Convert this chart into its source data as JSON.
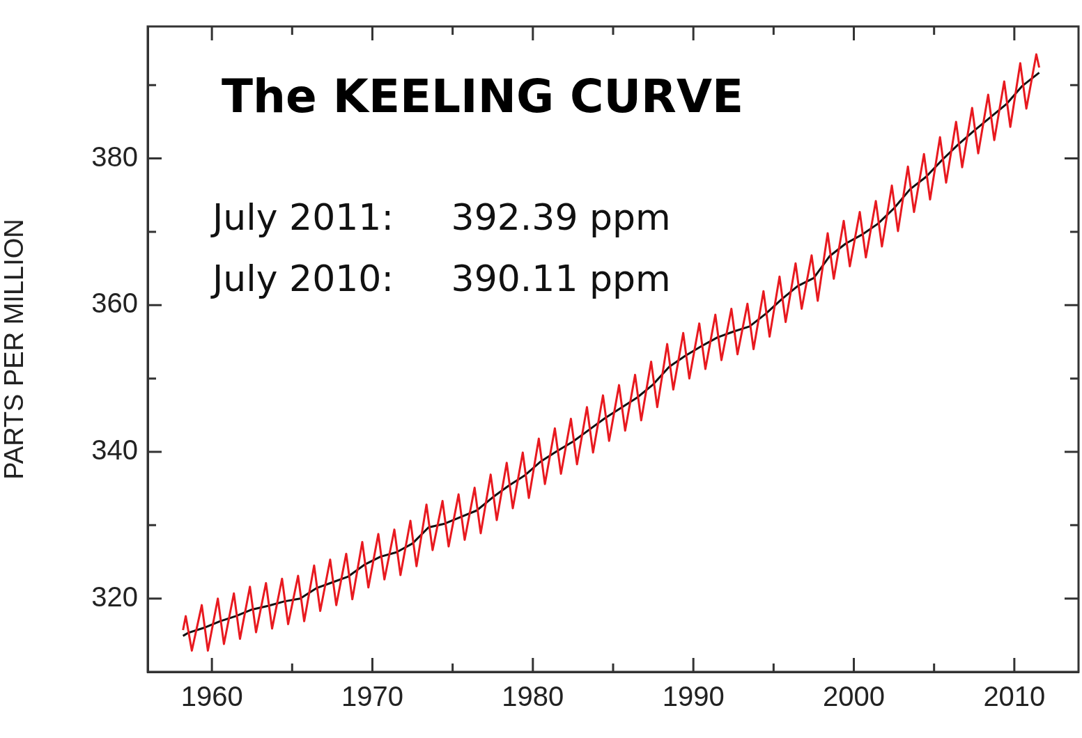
{
  "chart_data": {
    "type": "line",
    "title": "The KEELING CURVE",
    "ylabel": "PARTS PER MILLION",
    "annotations": [
      "July 2011:     392.39 ppm",
      "July 2010:     390.11 ppm"
    ],
    "xlim": [
      1956,
      2014
    ],
    "xticks": [
      1960,
      {
        "value": 1965,
        "label": null
      },
      1970,
      {
        "value": 1975,
        "label": null
      },
      1980,
      {
        "value": 1985,
        "label": null
      },
      1990,
      {
        "value": 1995,
        "label": null
      },
      2000,
      {
        "value": 2005,
        "label": null
      },
      2010
    ],
    "ylim": [
      310,
      398
    ],
    "yticks": [
      320,
      {
        "value": 330,
        "label": null
      },
      340,
      {
        "value": 350,
        "label": null
      },
      360,
      {
        "value": 370,
        "label": null
      },
      380,
      {
        "value": 390,
        "label": null
      }
    ],
    "legend": false,
    "series": [
      {
        "color": "#e8191f",
        "x": [
          1958.2,
          1958.37,
          1958.75,
          1959.37,
          1959.75,
          1960.37,
          1960.75,
          1961.37,
          1961.75,
          1962.37,
          1962.75,
          1963.37,
          1963.75,
          1964.37,
          1964.75,
          1965.37,
          1965.75,
          1966.37,
          1966.75,
          1967.37,
          1967.75,
          1968.37,
          1968.75,
          1969.37,
          1969.75,
          1970.37,
          1970.75,
          1971.37,
          1971.75,
          1972.37,
          1972.75,
          1973.37,
          1973.75,
          1974.37,
          1974.75,
          1975.37,
          1975.75,
          1976.37,
          1976.75,
          1977.37,
          1977.75,
          1978.37,
          1978.75,
          1979.37,
          1979.75,
          1980.37,
          1980.75,
          1981.37,
          1981.75,
          1982.37,
          1982.75,
          1983.37,
          1983.75,
          1984.37,
          1984.75,
          1985.37,
          1985.75,
          1986.37,
          1986.75,
          1987.37,
          1987.75,
          1988.37,
          1988.75,
          1989.37,
          1989.75,
          1990.37,
          1990.75,
          1991.37,
          1991.75,
          1992.37,
          1992.75,
          1993.37,
          1993.75,
          1994.37,
          1994.75,
          1995.37,
          1995.75,
          1996.37,
          1996.75,
          1997.37,
          1997.75,
          1998.37,
          1998.75,
          1999.37,
          1999.75,
          2000.37,
          2000.75,
          2001.37,
          2001.75,
          2002.37,
          2002.75,
          2003.37,
          2003.75,
          2004.37,
          2004.75,
          2005.37,
          2005.75,
          2006.37,
          2006.75,
          2007.37,
          2007.75,
          2008.37,
          2008.75,
          2009.37,
          2009.75,
          2010.37,
          2010.75,
          2011.37,
          2011.55
        ],
        "values": [
          315.7,
          317.6,
          312.9,
          319.1,
          312.9,
          320.0,
          313.8,
          320.7,
          314.5,
          321.6,
          315.4,
          322.1,
          315.9,
          322.7,
          316.5,
          323.1,
          316.9,
          324.5,
          318.3,
          325.3,
          319.1,
          326.1,
          319.9,
          327.7,
          321.5,
          328.8,
          322.6,
          329.4,
          323.2,
          330.6,
          324.4,
          332.8,
          326.6,
          333.3,
          327.1,
          334.2,
          328.0,
          335.1,
          328.9,
          336.9,
          330.7,
          338.5,
          332.3,
          339.9,
          333.7,
          341.8,
          335.6,
          343.2,
          337.0,
          344.5,
          338.3,
          346.1,
          339.9,
          347.7,
          341.5,
          349.1,
          342.9,
          350.5,
          344.3,
          352.3,
          346.1,
          354.7,
          348.5,
          356.2,
          350.0,
          357.5,
          351.3,
          358.7,
          352.5,
          359.5,
          353.3,
          360.2,
          354.0,
          361.9,
          355.7,
          363.9,
          357.7,
          365.7,
          359.5,
          366.8,
          360.6,
          369.8,
          363.6,
          371.5,
          365.3,
          372.7,
          366.5,
          374.2,
          368.0,
          376.3,
          370.1,
          378.9,
          372.7,
          380.6,
          374.4,
          382.9,
          376.7,
          385.0,
          378.8,
          386.9,
          380.7,
          388.7,
          382.5,
          390.5,
          384.3,
          393.0,
          386.8,
          394.2,
          392.4
        ]
      },
      {
        "color": "#111111",
        "x": [
          1958.2,
          1958.5,
          1959.5,
          1960.5,
          1961.5,
          1962.5,
          1963.5,
          1964.5,
          1965.5,
          1966.5,
          1967.5,
          1968.5,
          1969.5,
          1970.5,
          1971.5,
          1972.5,
          1973.5,
          1974.5,
          1975.5,
          1976.5,
          1977.5,
          1978.5,
          1979.5,
          1980.5,
          1981.5,
          1982.5,
          1983.5,
          1984.5,
          1985.5,
          1986.5,
          1987.5,
          1988.5,
          1989.5,
          1990.5,
          1991.5,
          1992.5,
          1993.5,
          1994.5,
          1995.5,
          1996.5,
          1997.5,
          1998.5,
          1999.5,
          2000.5,
          2001.5,
          2002.5,
          2003.5,
          2004.5,
          2005.5,
          2006.5,
          2007.5,
          2008.5,
          2009.5,
          2010.5,
          2011.55
        ],
        "values": [
          314.9,
          315.3,
          316.0,
          316.9,
          317.6,
          318.5,
          319.0,
          319.6,
          320.0,
          321.4,
          322.2,
          323.0,
          324.6,
          325.7,
          326.3,
          327.5,
          329.7,
          330.2,
          331.1,
          332.0,
          333.8,
          335.4,
          336.8,
          338.7,
          340.1,
          341.4,
          343.0,
          344.6,
          346.0,
          347.4,
          349.2,
          351.6,
          353.1,
          354.4,
          355.6,
          356.4,
          357.1,
          358.8,
          360.8,
          362.6,
          363.7,
          366.7,
          368.4,
          369.6,
          371.1,
          373.2,
          375.8,
          377.5,
          379.8,
          381.9,
          383.8,
          385.6,
          387.4,
          389.9,
          391.7
        ]
      }
    ]
  }
}
